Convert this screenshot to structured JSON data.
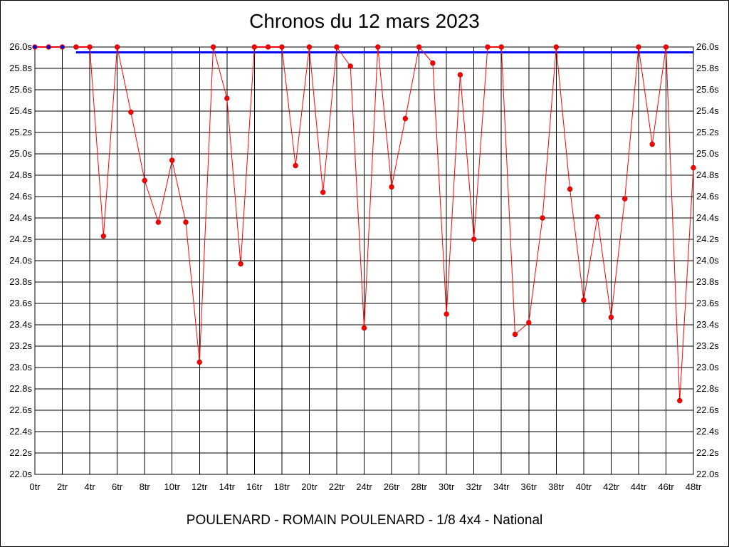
{
  "chart_data": {
    "type": "line",
    "title": "Chronos du 12 mars 2023",
    "footer": "POULENARD - ROMAIN POULENARD - 1/8 4x4 - National",
    "ylim": [
      22.0,
      26.0
    ],
    "xlim": [
      0,
      48
    ],
    "yticks": [
      "22.0s",
      "22.2s",
      "22.4s",
      "22.6s",
      "22.8s",
      "23.0s",
      "23.2s",
      "23.4s",
      "23.6s",
      "23.8s",
      "24.0s",
      "24.2s",
      "24.4s",
      "24.6s",
      "24.8s",
      "25.0s",
      "25.2s",
      "25.4s",
      "25.6s",
      "25.8s",
      "26.0s"
    ],
    "xticks": [
      "0tr",
      "2tr",
      "4tr",
      "6tr",
      "8tr",
      "10tr",
      "12tr",
      "14tr",
      "16tr",
      "18tr",
      "20tr",
      "22tr",
      "24tr",
      "26tr",
      "28tr",
      "30tr",
      "32tr",
      "34tr",
      "36tr",
      "38tr",
      "40tr",
      "42tr",
      "44tr",
      "46tr",
      "48tr"
    ],
    "grid": true,
    "colors": {
      "laps": "#ff0000",
      "marker_outline": "#cc0000",
      "initial": "#0000cc",
      "reference": "#0000ff"
    },
    "series": [
      {
        "x": [
          0,
          1,
          2
        ],
        "values": [
          26.0,
          26.0,
          26.0
        ]
      },
      {
        "x": [
          3,
          4,
          5,
          6,
          7,
          8,
          9,
          10,
          11,
          12,
          13,
          14,
          15,
          16,
          17,
          18,
          19,
          20,
          21,
          22,
          23,
          24,
          25,
          26,
          27,
          28,
          29,
          30,
          31,
          32,
          33,
          34,
          35,
          36,
          37,
          38,
          39,
          40,
          41,
          42,
          43,
          44,
          45,
          46,
          47,
          48
        ],
        "values": [
          26.0,
          26.0,
          24.23,
          26.0,
          25.39,
          24.75,
          24.36,
          24.94,
          24.36,
          23.05,
          26.0,
          25.52,
          23.97,
          26.0,
          26.0,
          26.0,
          24.89,
          26.0,
          24.64,
          26.0,
          25.82,
          23.37,
          26.0,
          24.69,
          25.33,
          26.0,
          25.85,
          23.5,
          25.74,
          24.2,
          26.0,
          26.0,
          23.31,
          23.42,
          24.4,
          26.0,
          24.67,
          23.63,
          24.41,
          23.47,
          24.58,
          26.0,
          25.09,
          26.0,
          22.69,
          24.87
        ]
      }
    ],
    "reference_line": {
      "from_x": 3,
      "to_x": 48,
      "value": 25.95
    }
  }
}
